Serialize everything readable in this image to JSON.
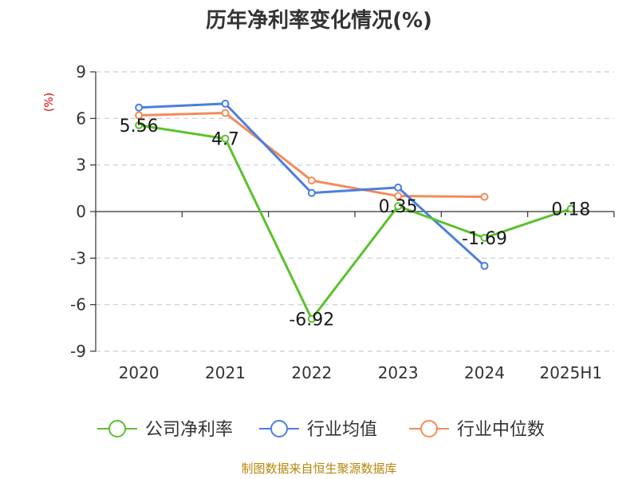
{
  "chart_data": {
    "type": "line",
    "title": "历年净利率变化情况(%)",
    "unit_label": "(%)",
    "categories": [
      "2020",
      "2021",
      "2022",
      "2023",
      "2024",
      "2025H1"
    ],
    "ylim": [
      -9,
      9
    ],
    "yticks": [
      9,
      6,
      3,
      0,
      -3,
      -6,
      -9
    ],
    "grid": true,
    "legend_position": "bottom",
    "series": [
      {
        "name": "公司净利率",
        "color": "#5bc12d",
        "values": [
          5.56,
          4.7,
          -6.92,
          0.35,
          -1.69,
          0.18
        ],
        "labels": [
          "5.56",
          "4.7",
          "-6.92",
          "0.35",
          "-1.69",
          "0.18"
        ]
      },
      {
        "name": "行业均值",
        "color": "#4c7fde",
        "values": [
          6.7,
          6.95,
          1.2,
          1.55,
          -3.5,
          null
        ]
      },
      {
        "name": "行业中位数",
        "color": "#f28c5a",
        "values": [
          6.2,
          6.35,
          2.0,
          1.0,
          0.95,
          null
        ]
      }
    ]
  },
  "source_text": "制图数据来自恒生聚源数据库"
}
